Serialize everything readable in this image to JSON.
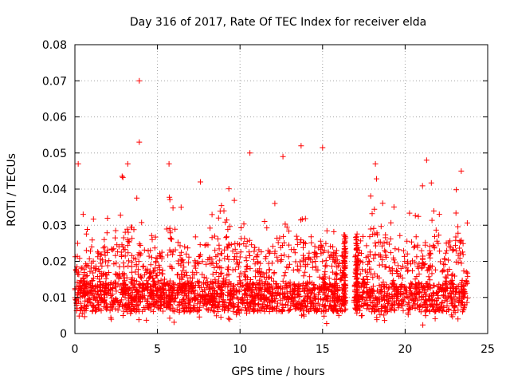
{
  "chart_data": {
    "type": "scatter",
    "title": "Day 316 of 2017, Rate Of TEC Index for receiver elda",
    "xlabel": "GPS time / hours",
    "ylabel": "ROTI / TECUs",
    "xlim": [
      0,
      25
    ],
    "ylim": [
      0,
      0.08
    ],
    "xticks": [
      0,
      5,
      10,
      15,
      20,
      25
    ],
    "xtick_labels": [
      "0",
      "5",
      "10",
      "15",
      "20",
      "25"
    ],
    "yticks": [
      0,
      0.01,
      0.02,
      0.03,
      0.04,
      0.05,
      0.06,
      0.07,
      0.08
    ],
    "ytick_labels": [
      "0",
      "0.01",
      "0.02",
      "0.03",
      "0.04",
      "0.05",
      "0.06",
      "0.07",
      "0.08"
    ],
    "grid": true,
    "marker": "+",
    "series": [
      {
        "name": "ROTI",
        "color": "#ff0000",
        "x_range": [
          0,
          23.8
        ],
        "data_gap": [
          16.4,
          16.9
        ],
        "baseline_band": [
          0.006,
          0.014
        ],
        "notable_points": [
          {
            "x": 0.2,
            "y": 0.047
          },
          {
            "x": 0.5,
            "y": 0.033
          },
          {
            "x": 3.2,
            "y": 0.047
          },
          {
            "x": 3.9,
            "y": 0.07
          },
          {
            "x": 3.9,
            "y": 0.053
          },
          {
            "x": 5.7,
            "y": 0.047
          },
          {
            "x": 7.6,
            "y": 0.042
          },
          {
            "x": 10.6,
            "y": 0.05
          },
          {
            "x": 12.6,
            "y": 0.049
          },
          {
            "x": 13.7,
            "y": 0.052
          },
          {
            "x": 15.0,
            "y": 0.0515
          },
          {
            "x": 18.2,
            "y": 0.047
          },
          {
            "x": 21.3,
            "y": 0.048
          },
          {
            "x": 23.4,
            "y": 0.045
          }
        ]
      }
    ]
  }
}
